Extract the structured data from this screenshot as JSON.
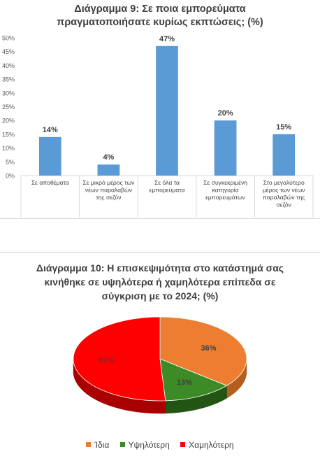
{
  "colors": {
    "bar": "#5B9BD5",
    "axis": "#d9d9d9",
    "text": "#404040",
    "slice_idia": "#ED7D31",
    "slice_idia_side": "#B35D1E",
    "slice_ypsiloteri": "#3D8B26",
    "slice_ypsiloteri_side": "#225514",
    "slice_xamiloteri": "#FF0000",
    "slice_xamiloteri_side": "#A80000"
  },
  "chart_data": [
    {
      "type": "bar",
      "title_lines": [
        "Διάγραμμα 9: Σε ποια εμπορεύματα",
        "πραγματοποιήσατε κυρίως εκπτώσεις; (%)"
      ],
      "categories": [
        [
          "Σε αποθέματα"
        ],
        [
          "Σε μικρό μέρος των",
          "νέων παραλαβών",
          "της σεζόν"
        ],
        [
          "Σε όλα τα",
          "εμπορεύματα"
        ],
        [
          "Σε συγκεκριμένη",
          "κατηγορία",
          "εμπορευμάτων"
        ],
        [
          "Στο μεγαλύτερο",
          "μέρος των νέων",
          "παραλαβών της",
          "σεζόν"
        ]
      ],
      "values": [
        14,
        4,
        47,
        20,
        15
      ],
      "data_labels": [
        "14%",
        "4%",
        "47%",
        "20%",
        "15%"
      ],
      "ylim": [
        0,
        50
      ],
      "yticks": [
        "0%",
        "5%",
        "10%",
        "15%",
        "20%",
        "25%",
        "30%",
        "35%",
        "40%",
        "45%",
        "50%"
      ],
      "grid": false
    },
    {
      "type": "pie",
      "title_lines": [
        "Διάγραμμα 10: Η επισκεψιμότητα στο κατάστημά σας",
        "κινήθηκε σε υψηλότερα ή χαμηλότερα επίπεδα σε",
        "σύγκριση με το 2024; (%)"
      ],
      "slices": [
        {
          "label": "Ίδια",
          "value": 36,
          "display": "36%"
        },
        {
          "label": "Υψηλότερη",
          "value": 13,
          "display": "13%"
        },
        {
          "label": "Χαμηλότερη",
          "value": 51,
          "display": "51%"
        }
      ],
      "legend_position": "bottom"
    }
  ]
}
